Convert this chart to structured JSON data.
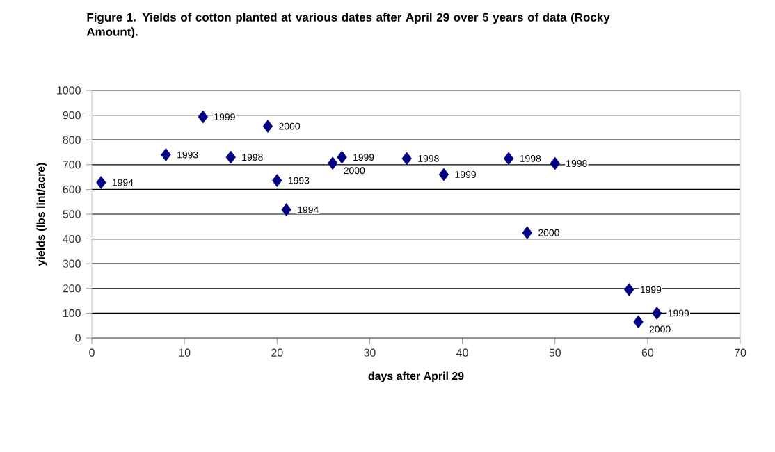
{
  "chart_data": {
    "type": "scatter",
    "title": "Figure 1. Yields of cotton planted at various dates after April 29 over 5 years of data (Rocky Amount).",
    "xlabel": "days after April 29",
    "ylabel": "yields (lbs lint/acre)",
    "x": [
      1,
      8,
      12,
      15,
      19,
      20,
      21,
      26,
      27,
      34,
      38,
      45,
      47,
      50,
      58,
      59,
      61
    ],
    "values": [
      628,
      740,
      893,
      730,
      855,
      636,
      518,
      706,
      730,
      725,
      660,
      725,
      425,
      705,
      195,
      65,
      100
    ],
    "color": "#000080",
    "marker": "diamond",
    "xlim": [
      0,
      70
    ],
    "xticks": [
      0,
      10,
      20,
      30,
      40,
      50,
      60,
      70
    ],
    "ylim": [
      0,
      1000
    ],
    "yticks": [
      0,
      100,
      200,
      300,
      400,
      500,
      600,
      700,
      800,
      900,
      1000
    ],
    "grid": "y",
    "annotations": [
      {
        "text": "1994",
        "x": 1,
        "y": 628
      },
      {
        "text": "1993",
        "x": 8,
        "y": 740
      },
      {
        "text": "1999",
        "x": 12,
        "y": 893
      },
      {
        "text": "1998",
        "x": 15,
        "y": 730
      },
      {
        "text": "2000",
        "x": 19,
        "y": 855
      },
      {
        "text": "1993",
        "x": 20,
        "y": 636
      },
      {
        "text": "1994",
        "x": 21,
        "y": 518
      },
      {
        "text": "2000",
        "x": 26,
        "y": 706
      },
      {
        "text": "1999",
        "x": 27,
        "y": 730
      },
      {
        "text": "1998",
        "x": 34,
        "y": 725
      },
      {
        "text": "1999",
        "x": 38,
        "y": 660
      },
      {
        "text": "1998",
        "x": 45,
        "y": 725
      },
      {
        "text": "2000",
        "x": 47,
        "y": 425
      },
      {
        "text": "1998",
        "x": 50,
        "y": 705
      },
      {
        "text": "1999",
        "x": 58,
        "y": 195
      },
      {
        "text": "2000",
        "x": 59,
        "y": 65
      },
      {
        "text": "1999",
        "x": 61,
        "y": 100
      }
    ]
  }
}
